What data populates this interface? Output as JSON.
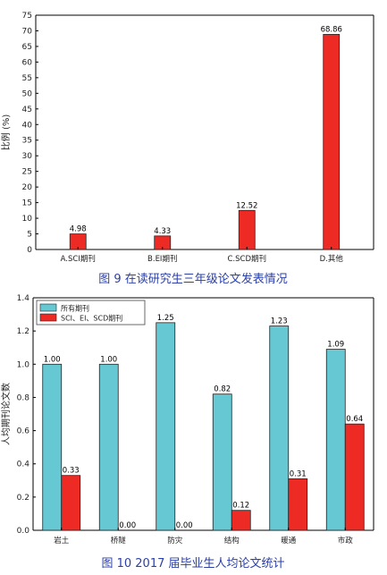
{
  "chart_data": [
    {
      "type": "bar",
      "caption": "图 9 在读研究生三年级论文发表情况",
      "ylabel": "比例 (%)",
      "ylim": [
        0,
        75
      ],
      "yticks": [
        0,
        5,
        10,
        15,
        20,
        25,
        30,
        35,
        40,
        45,
        50,
        55,
        60,
        65,
        70,
        75
      ],
      "categories": [
        "A.SCI期刊",
        "B.EI期刊",
        "C.SCD期刊",
        "D.其他"
      ],
      "values": [
        4.98,
        4.33,
        12.52,
        68.86
      ],
      "value_labels": [
        "4.98",
        "4.33",
        "12.52",
        "68.86"
      ],
      "color": "#ee2a24",
      "grid": false
    },
    {
      "type": "bar",
      "caption": "图 10 2017 届毕业生人均论文统计",
      "ylabel": "人均期刊论文数",
      "ylim": [
        0,
        1.4
      ],
      "yticks": [
        "0.0",
        "0.2",
        "0.4",
        "0.6",
        "0.8",
        "1.0",
        "1.2",
        "1.4"
      ],
      "categories": [
        "岩土",
        "桥隧",
        "防灾",
        "结构",
        "暖通",
        "市政"
      ],
      "series": [
        {
          "name": "所有期刊",
          "values": [
            1.0,
            1.0,
            1.25,
            0.82,
            1.23,
            1.09
          ],
          "value_labels": [
            "1.00",
            "1.00",
            "1.25",
            "0.82",
            "1.23",
            "1.09"
          ],
          "color": "#66c8d2"
        },
        {
          "name": "SCI、EI、SCD期刊",
          "values": [
            0.33,
            0.0,
            0.0,
            0.12,
            0.31,
            0.64
          ],
          "value_labels": [
            "0.33",
            "0.00",
            "0.00",
            "0.12",
            "0.31",
            "0.64"
          ],
          "color": "#ee2a24"
        }
      ],
      "legend": "top-left",
      "grid": false
    }
  ]
}
